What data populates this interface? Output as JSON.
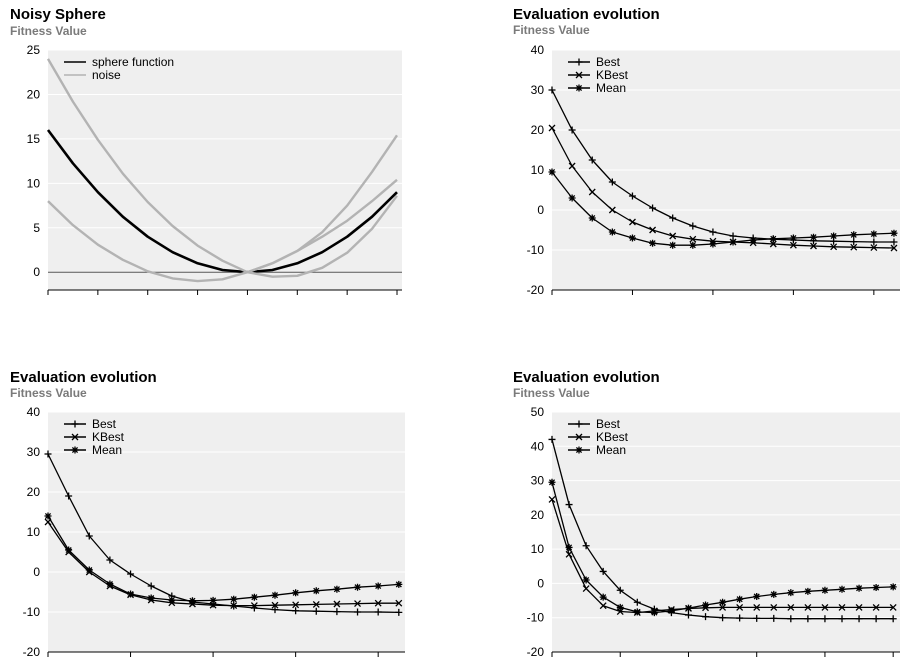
{
  "chart_data": [
    {
      "type": "line",
      "title": "Noisy Sphere",
      "ylabel": "Fitness Value",
      "ylim": [
        -2,
        25
      ],
      "yticks": [
        0,
        5,
        10,
        15,
        20,
        25
      ],
      "x": [
        -4,
        -3.5,
        -3,
        -2.5,
        -2,
        -1.5,
        -1,
        -0.5,
        0,
        0.5,
        1,
        1.5,
        2,
        2.5,
        3
      ],
      "legend_position": "top-left",
      "series": [
        {
          "name": "sphere function",
          "color": "#000000",
          "marker": "line",
          "values": [
            16,
            12.25,
            9,
            6.25,
            4,
            2.25,
            1,
            0.25,
            0,
            0.25,
            1,
            2.25,
            4,
            6.25,
            9
          ]
        },
        {
          "name": "noise",
          "color": "#b3b3b3",
          "marker": "line",
          "values": [
            24,
            19.2,
            14.9,
            11.1,
            7.9,
            5.2,
            3.0,
            1.3,
            0,
            -0.5,
            -0.4,
            0.5,
            2.2,
            4.9,
            8.6
          ]
        },
        {
          "name": "",
          "color": "#b3b3b3",
          "marker": "line",
          "values": [
            8,
            5.3,
            3.1,
            1.4,
            0.1,
            -0.7,
            -1.0,
            -0.8,
            0,
            1.0,
            2.4,
            4.0,
            5.8,
            8.0,
            10.4
          ]
        },
        {
          "name": "",
          "color": "#b3b3b3",
          "marker": "line",
          "values": [
            null,
            null,
            null,
            null,
            null,
            null,
            null,
            null,
            0,
            1.0,
            2.4,
            4.5,
            7.5,
            11.3,
            15.4
          ]
        }
      ],
      "hline": 0
    },
    {
      "type": "line",
      "title": "Evaluation evolution",
      "ylabel": "Fitness Value",
      "ylim": [
        -20,
        40
      ],
      "yticks": [
        -20,
        -10,
        0,
        10,
        20,
        30,
        40
      ],
      "x": [
        0,
        1,
        2,
        3,
        4,
        5,
        6,
        7,
        8,
        9,
        10,
        11,
        12,
        13,
        14,
        15,
        16,
        17
      ],
      "legend_position": "top-left",
      "series": [
        {
          "name": "Best",
          "marker": "plus",
          "values": [
            30,
            20,
            12.5,
            7,
            3.5,
            0.5,
            -2,
            -4,
            -5.5,
            -6.5,
            -7,
            -7.3,
            -7.5,
            -7.7,
            -7.8,
            -7.9,
            -8,
            -8
          ]
        },
        {
          "name": "KBest",
          "marker": "x",
          "values": [
            20.5,
            11,
            4.5,
            0,
            -3,
            -5,
            -6.5,
            -7.3,
            -7.8,
            -8,
            -8.2,
            -8.5,
            -8.8,
            -9,
            -9.2,
            -9.3,
            -9.4,
            -9.5
          ]
        },
        {
          "name": "Mean",
          "marker": "square",
          "values": [
            9.5,
            3,
            -2,
            -5.5,
            -7,
            -8.3,
            -8.8,
            -8.8,
            -8.5,
            -8,
            -7.5,
            -7.2,
            -7,
            -6.8,
            -6.5,
            -6.2,
            -6,
            -5.8
          ]
        }
      ]
    },
    {
      "type": "line",
      "title": "Evaluation evolution",
      "ylabel": "Fitness Value",
      "ylim": [
        -20,
        40
      ],
      "yticks": [
        -20,
        -10,
        0,
        10,
        20,
        30,
        40
      ],
      "x": [
        0,
        1,
        2,
        3,
        4,
        5,
        6,
        7,
        8,
        9,
        10,
        11,
        12,
        13,
        14,
        15,
        16,
        17
      ],
      "legend_position": "top-left",
      "series": [
        {
          "name": "Best",
          "marker": "plus",
          "values": [
            29.5,
            19,
            9,
            3,
            -0.5,
            -3.5,
            -6,
            -7.5,
            -8,
            -8.5,
            -9,
            -9.4,
            -9.7,
            -9.8,
            -9.9,
            -10,
            -10,
            -10.1
          ]
        },
        {
          "name": "KBest",
          "marker": "x",
          "values": [
            12.5,
            5,
            0,
            -3.5,
            -5.7,
            -7,
            -7.7,
            -8,
            -8.3,
            -8.4,
            -8.4,
            -8.3,
            -8.2,
            -8.1,
            -8,
            -7.9,
            -7.8,
            -7.8
          ]
        },
        {
          "name": "Mean",
          "marker": "square",
          "values": [
            14,
            5.5,
            0.5,
            -3,
            -5.5,
            -6.5,
            -7,
            -7.2,
            -7.1,
            -6.8,
            -6.3,
            -5.8,
            -5.2,
            -4.7,
            -4.3,
            -3.8,
            -3.5,
            -3.1
          ]
        }
      ]
    },
    {
      "type": "line",
      "title": "Evaluation evolution",
      "ylabel": "Fitness Value",
      "ylim": [
        -20,
        50
      ],
      "yticks": [
        -20,
        -10,
        0,
        10,
        20,
        30,
        40,
        50
      ],
      "x": [
        0,
        1,
        2,
        3,
        4,
        5,
        6,
        7,
        8,
        9,
        10,
        11,
        12,
        13,
        14,
        15,
        16,
        17,
        18,
        19,
        20
      ],
      "legend_position": "top-left",
      "series": [
        {
          "name": "Best",
          "marker": "plus",
          "values": [
            42,
            23,
            11,
            3.5,
            -2,
            -5.5,
            -7.5,
            -8.5,
            -9.2,
            -9.7,
            -10,
            -10.1,
            -10.2,
            -10.2,
            -10.3,
            -10.3,
            -10.3,
            -10.3,
            -10.3,
            -10.3,
            -10.3
          ]
        },
        {
          "name": "KBest",
          "marker": "x",
          "values": [
            24.5,
            8.5,
            -1.5,
            -6.5,
            -8.2,
            -8.5,
            -8,
            -7.6,
            -7.3,
            -7.1,
            -7,
            -7,
            -7,
            -7,
            -7,
            -7,
            -7,
            -7,
            -7,
            -7,
            -7
          ]
        },
        {
          "name": "Mean",
          "marker": "square",
          "values": [
            29.5,
            10.5,
            1,
            -4,
            -7,
            -8.3,
            -8.5,
            -8,
            -7.2,
            -6.3,
            -5.5,
            -4.6,
            -3.8,
            -3.2,
            -2.7,
            -2.3,
            -2,
            -1.7,
            -1.4,
            -1.2,
            -1
          ]
        }
      ]
    }
  ]
}
